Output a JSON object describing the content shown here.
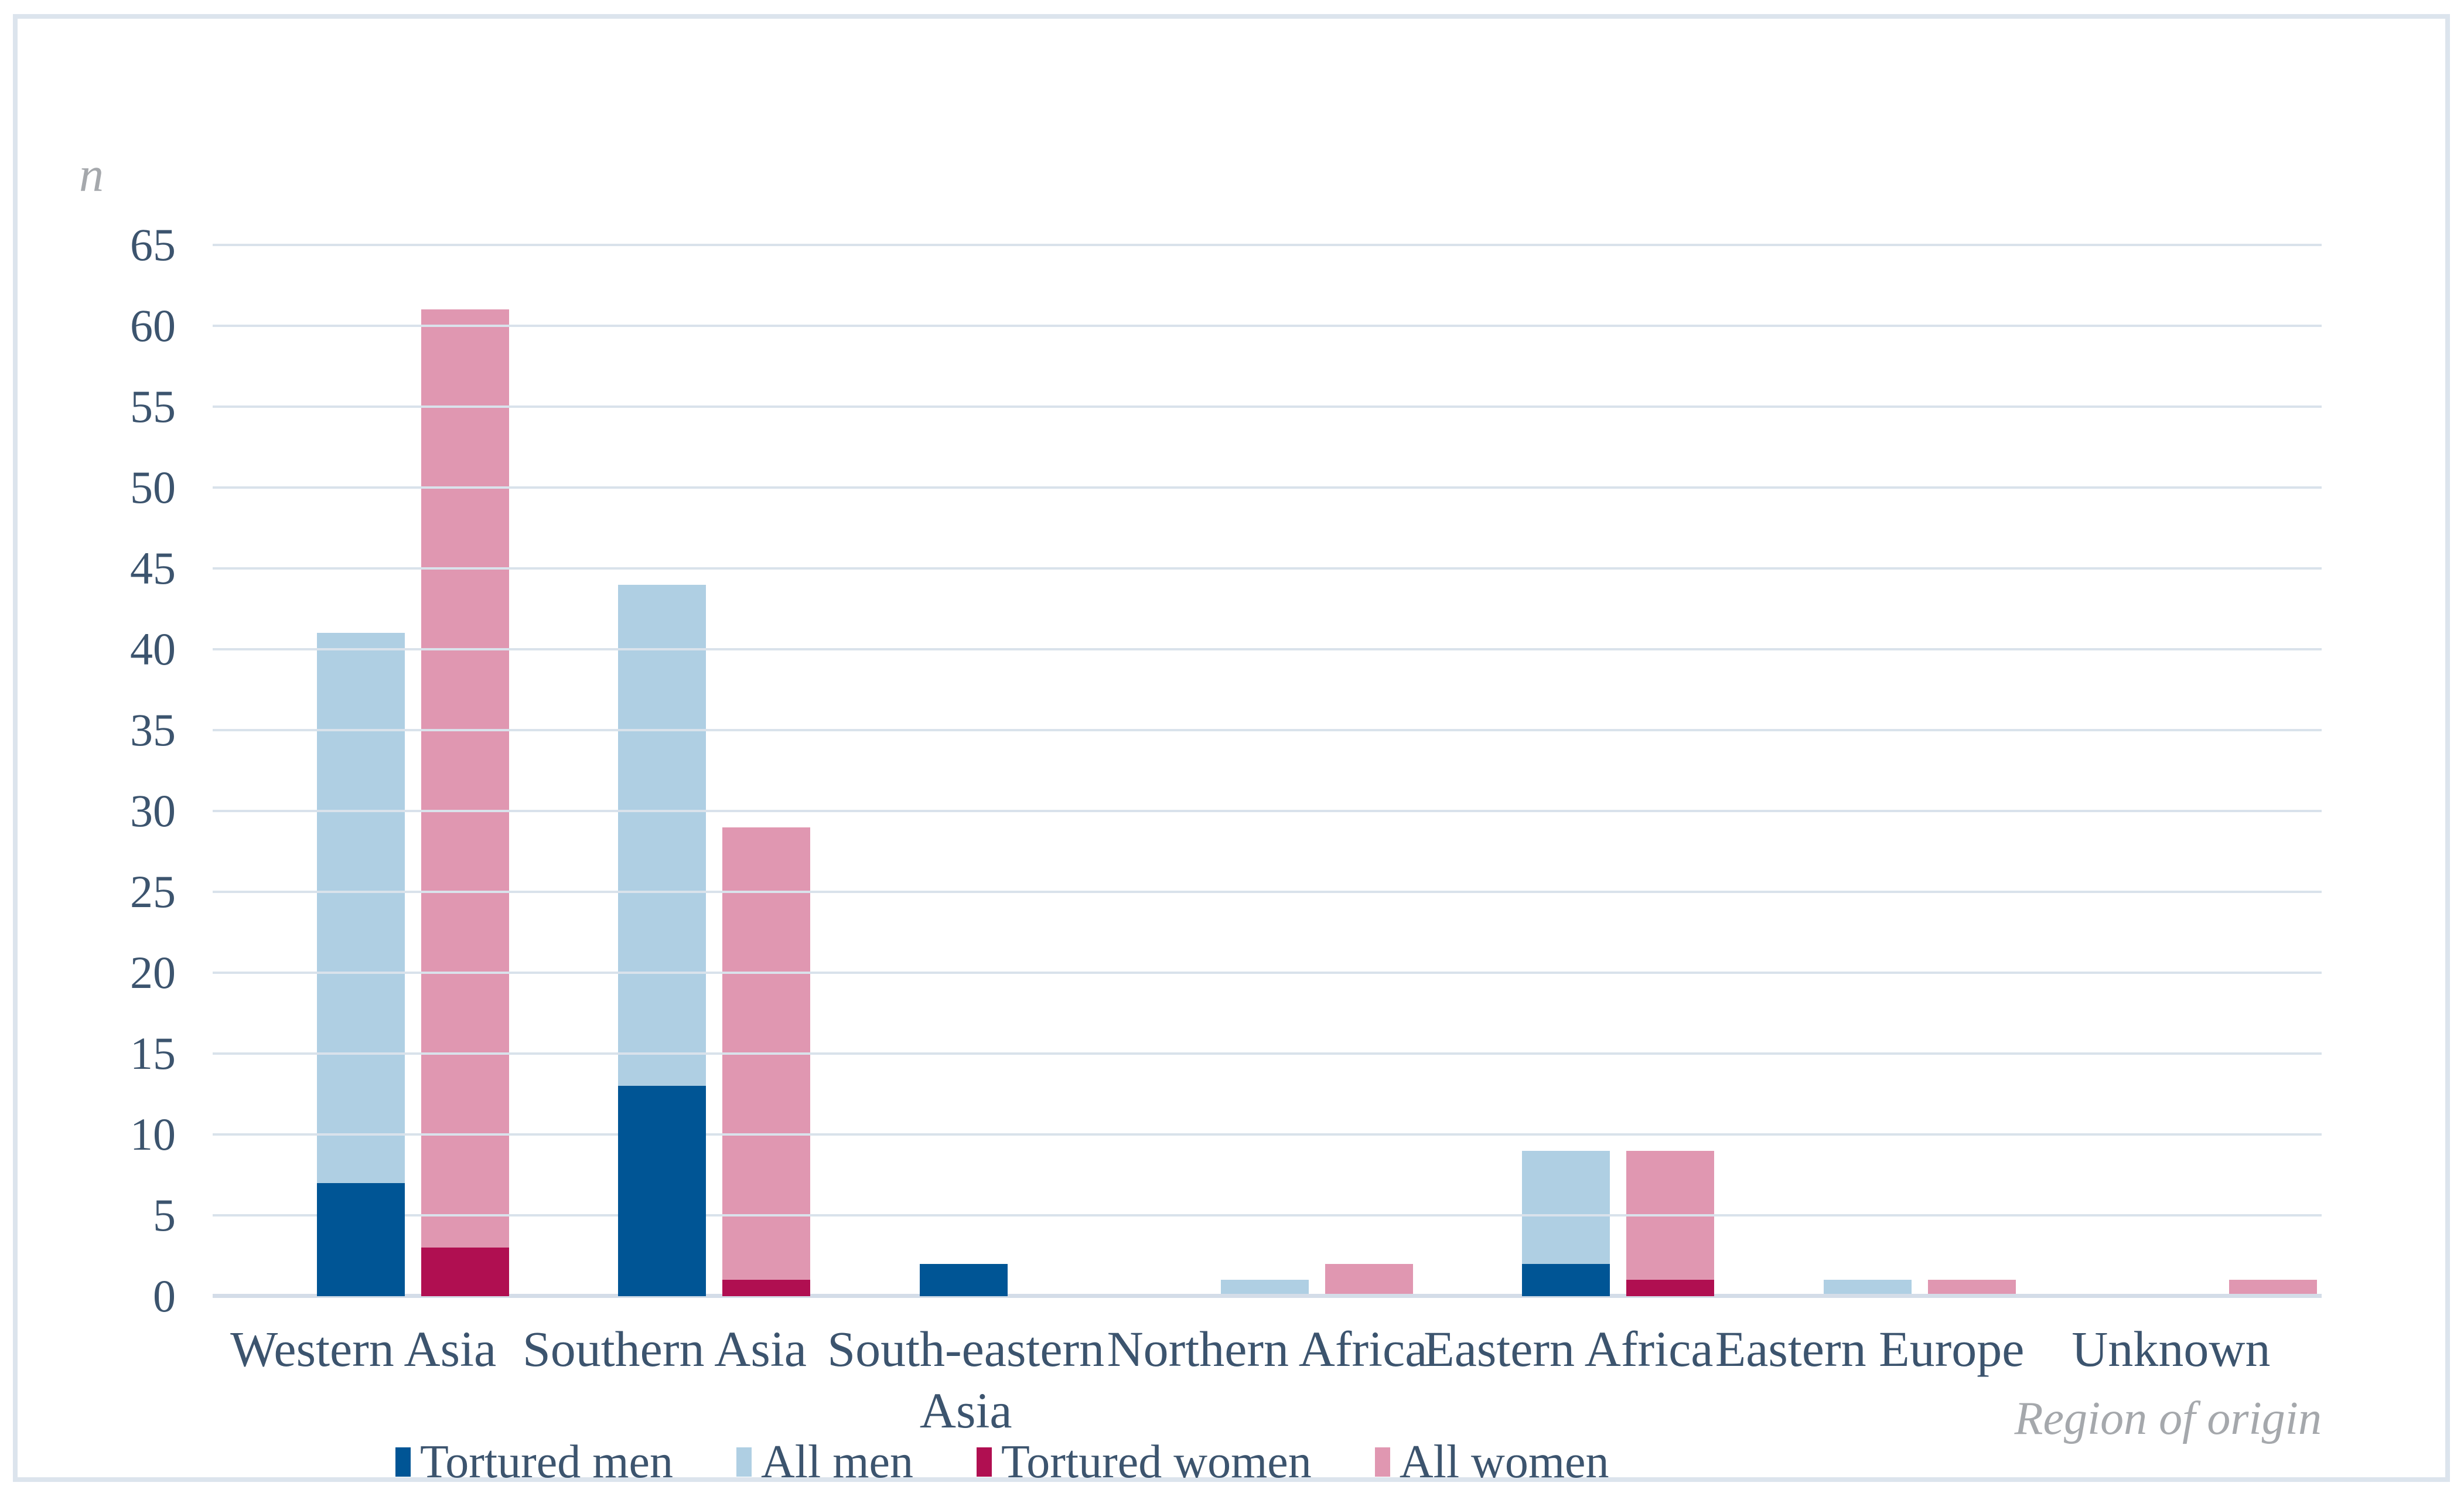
{
  "chart": {
    "y_axis_label": "n",
    "x_axis_label": "Region of origin"
  },
  "chart_data": {
    "type": "bar",
    "bar_mode": "overlapped-pairs (tortured series drawn in front of all series; men pair left, women pair right)",
    "title": "",
    "ylabel": "n",
    "xlabel": "Region of origin",
    "ylim": [
      0,
      65
    ],
    "y_ticks": [
      0,
      5,
      10,
      15,
      20,
      25,
      30,
      35,
      40,
      45,
      50,
      55,
      60,
      65
    ],
    "grid": "horizontal",
    "legend_position": "bottom",
    "categories": [
      "Western Asia",
      "Southern Asia",
      "South-eastern Asia",
      "Northern Africa",
      "Eastern Africa",
      "Eastern Europe",
      "Unknown"
    ],
    "series": [
      {
        "name": "Tortured men",
        "color": "#005595",
        "group": "men",
        "layer": "front",
        "values": [
          7,
          13,
          2,
          0,
          2,
          0,
          0
        ]
      },
      {
        "name": "All men",
        "color": "#AFCFE3",
        "group": "men",
        "layer": "back",
        "values": [
          41,
          44,
          2,
          1,
          9,
          1,
          0
        ]
      },
      {
        "name": "Tortured women",
        "color": "#B00F51",
        "group": "women",
        "layer": "front",
        "values": [
          3,
          1,
          0,
          0,
          1,
          0,
          0
        ]
      },
      {
        "name": "All women",
        "color": "#E097B1",
        "group": "women",
        "layer": "back",
        "values": [
          61,
          29,
          0,
          2,
          9,
          1,
          1
        ]
      }
    ]
  },
  "colors": {
    "grid": "#D9E2EB",
    "baseline": "#D4DDE8",
    "border": "#DCE4ED",
    "axis_text": "#3C546E",
    "muted_text": "#A5A8AC",
    "background": "#FFFFFF"
  }
}
